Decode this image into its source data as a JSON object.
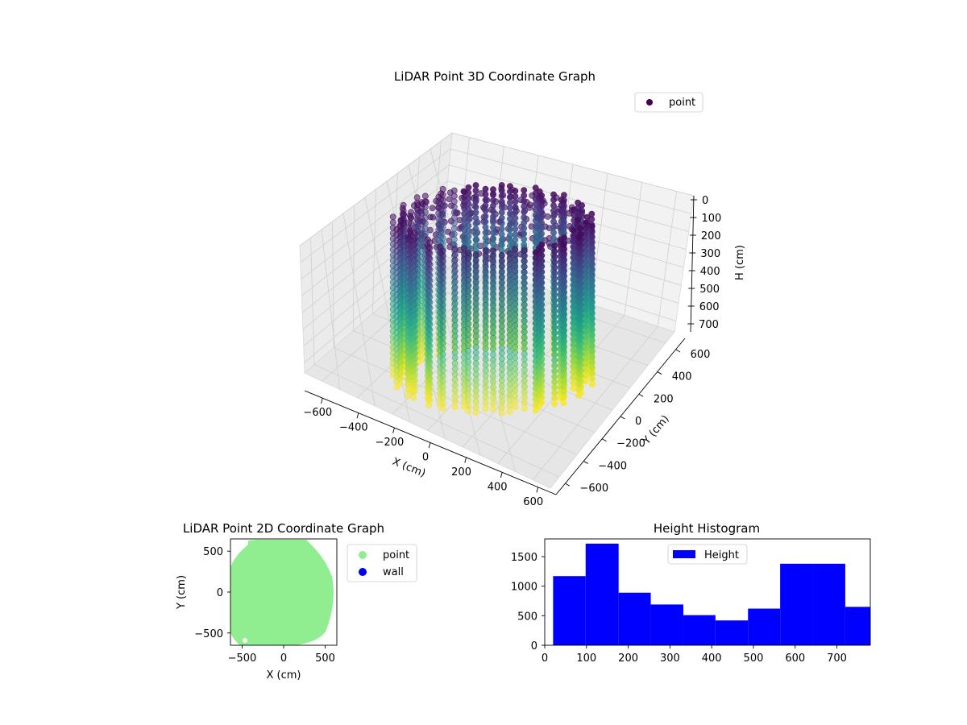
{
  "chart_data": [
    {
      "type": "scatter",
      "title": "LiDAR Point 3D Coordinate Graph",
      "xlabel": "X (cm)",
      "ylabel": "Y (cm)",
      "zlabel": "H (cm)",
      "legend": {
        "placement": "top-right",
        "entries": [
          "point"
        ]
      },
      "xlim": [
        -650,
        650
      ],
      "ylim": [
        -650,
        650
      ],
      "zlim": [
        780,
        0
      ],
      "x_ticks": [
        "−600",
        "−400",
        "−200",
        "0",
        "200",
        "400",
        "600"
      ],
      "y_ticks": [
        "−600",
        "−400",
        "−200",
        "0",
        "200",
        "400",
        "600"
      ],
      "z_ticks": [
        "0",
        "100",
        "200",
        "300",
        "400",
        "500",
        "600",
        "700"
      ],
      "z_inverted": true,
      "colormap": "viridis",
      "grid": true,
      "series": [
        {
          "name": "point",
          "color": "#440154",
          "description_values": {
            "shape": "cylindrical wall",
            "radius_approx": 520,
            "h_min": 0,
            "h_max": 780
          }
        }
      ]
    },
    {
      "type": "scatter",
      "title": "LiDAR Point 2D Coordinate Graph",
      "xlabel": "X (cm)",
      "ylabel": "Y (cm)",
      "xlim": [
        -640,
        640
      ],
      "ylim": [
        -650,
        650
      ],
      "x_ticks": [
        "−500",
        "0",
        "500"
      ],
      "y_ticks": [
        "−500",
        "0",
        "500"
      ],
      "legend": {
        "placement": "outside-right",
        "entries": [
          "point",
          "wall"
        ]
      },
      "series": [
        {
          "name": "point",
          "color": "#90ee90"
        },
        {
          "name": "wall",
          "color": "#0000ee"
        }
      ]
    },
    {
      "type": "bar",
      "title": "Height Histogram",
      "legend": {
        "placement": "top-center",
        "entries": [
          "Height"
        ]
      },
      "color": "#0000ff",
      "xlim": [
        0,
        780
      ],
      "ylim": [
        0,
        1800
      ],
      "x_ticks": [
        "0",
        "100",
        "200",
        "300",
        "400",
        "500",
        "600",
        "700"
      ],
      "y_ticks": [
        "0",
        "500",
        "1000",
        "1500"
      ],
      "bins": [
        {
          "x0": 20,
          "x1": 98,
          "value": 1170
        },
        {
          "x0": 98,
          "x1": 177,
          "value": 1720
        },
        {
          "x0": 177,
          "x1": 254,
          "value": 890
        },
        {
          "x0": 254,
          "x1": 332,
          "value": 690
        },
        {
          "x0": 332,
          "x1": 409,
          "value": 510
        },
        {
          "x0": 409,
          "x1": 487,
          "value": 420
        },
        {
          "x0": 487,
          "x1": 564,
          "value": 620
        },
        {
          "x0": 564,
          "x1": 642,
          "value": 1380
        },
        {
          "x0": 642,
          "x1": 720,
          "value": 1380
        },
        {
          "x0": 720,
          "x1": 780,
          "value": 650
        }
      ]
    }
  ]
}
